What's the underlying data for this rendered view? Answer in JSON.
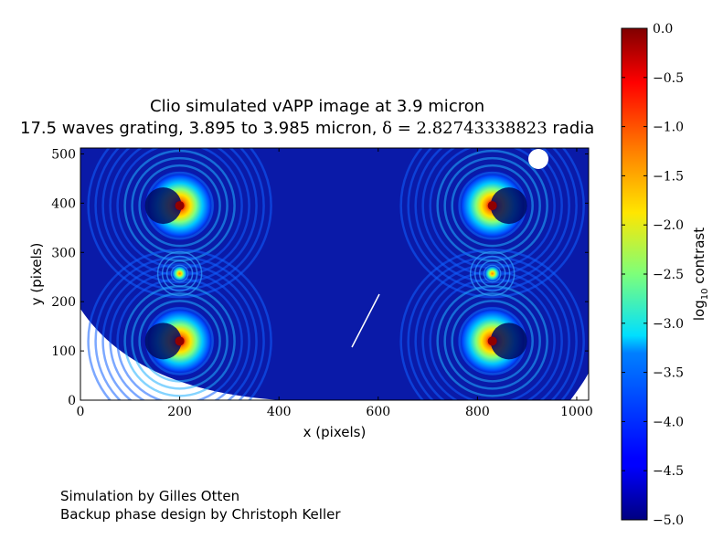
{
  "chart_data": {
    "type": "heatmap",
    "title": "Clio simulated vAPP image at 3.9 micron",
    "subtitle_prefix": "17.5 waves grating, 3.895 to 3.985 micron, ",
    "subtitle_math": "δ = 2.82743338823",
    "subtitle_suffix": " radia",
    "xlabel": "x (pixels)",
    "ylabel": "y (pixels)",
    "xlim": [
      0,
      1024
    ],
    "ylim": [
      0,
      512
    ],
    "xticks": [
      0,
      200,
      400,
      600,
      800,
      1000
    ],
    "yticks": [
      0,
      100,
      200,
      300,
      400,
      500
    ],
    "colorbar": {
      "label": "log10 contrast",
      "range": [
        -5.0,
        0.0
      ],
      "ticks": [
        "0.0",
        "−0.5",
        "−1.0",
        "−1.5",
        "−2.0",
        "−2.5",
        "−3.0",
        "−3.5",
        "−4.0",
        "−4.5",
        "−5.0"
      ],
      "colormap": "jet"
    },
    "psf_cores": [
      {
        "x": 200,
        "y": 395,
        "value": 0.0
      },
      {
        "x": 200,
        "y": 120,
        "value": 0.0
      },
      {
        "x": 200,
        "y": 257,
        "value": -1.5
      },
      {
        "x": 830,
        "y": 395,
        "value": 0.0
      },
      {
        "x": 830,
        "y": 120,
        "value": 0.0
      },
      {
        "x": 830,
        "y": 257,
        "value": -1.5
      }
    ]
  },
  "credits": {
    "line1": "Simulation by Gilles Otten",
    "line2": "Backup phase design by Christoph Keller"
  }
}
